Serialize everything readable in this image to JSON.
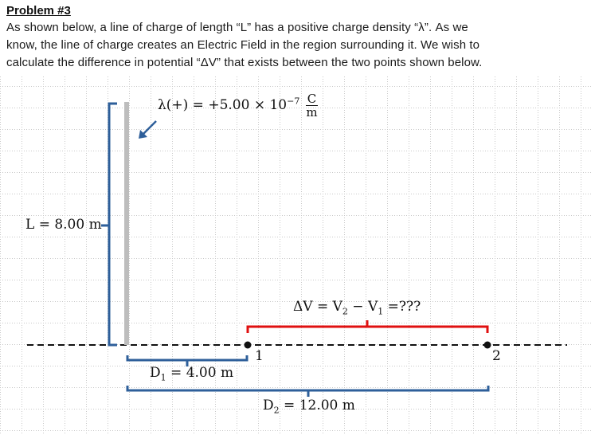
{
  "header": {
    "title": "Problem #3",
    "line1": "As shown below, a line of charge of length “L” has a positive charge density “λ”. As we",
    "line2": "know, the line of charge creates an Electric Field in the region surrounding it.  We wish to",
    "line3": "calculate the difference in potential “ΔV” that exists between the two points shown below."
  },
  "diagram": {
    "lambda_left": "λ(+) = +5.00 × 10",
    "lambda_exp": "−7",
    "unit_num": "C",
    "unit_den": "m",
    "length_label": "L = 8.00 m",
    "delta_v_label": "ΔV = V",
    "delta_v_sub2": "2",
    "delta_v_mid": " − V",
    "delta_v_sub1": "1",
    "delta_v_end": " =???",
    "point1_label": "1",
    "point2_label": "2",
    "d1_label": "D",
    "d1_sub": "1",
    "d1_value": " = 4.00 m",
    "d2_label": "D",
    "d2_sub": "2",
    "d2_value": " = 12.00 m"
  },
  "colors": {
    "rod": "#bdbdbd",
    "bracket": "#2e5f9a",
    "red_bracket": "#e01010",
    "point": "#111111"
  }
}
